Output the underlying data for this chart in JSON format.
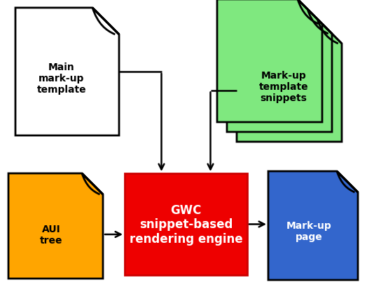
{
  "bg_color": "#ffffff",
  "doc_white": {
    "color": "#ffffff",
    "edge": "#000000"
  },
  "doc_green": {
    "color": "#7FE87F",
    "edge": "#000000"
  },
  "doc_green_fold": {
    "color": "#5ac85a"
  },
  "doc_orange": {
    "color": "#FFA500",
    "edge": "#000000"
  },
  "doc_orange_fold": {
    "color": "#cc7a00"
  },
  "doc_blue": {
    "color": "#3366CC",
    "edge": "#000000"
  },
  "doc_blue_fold": {
    "color": "#1a3a8a"
  },
  "engine_box": {
    "color": "#EE0000",
    "edge": "#CC0000"
  },
  "labels": {
    "main_template": "Main\nmark-up\ntemplate",
    "snippets": "Mark-up\ntemplate\nsnippets",
    "aui": "AUI\ntree",
    "engine": "GWC\nsnippet-based\nrendering engine",
    "markup_page": "Mark-up\npage"
  },
  "engine_text_color": "#ffffff",
  "doc_text_color": "#000000",
  "arrow_color": "#000000",
  "fig_w": 5.24,
  "fig_h": 4.1,
  "dpi": 100
}
